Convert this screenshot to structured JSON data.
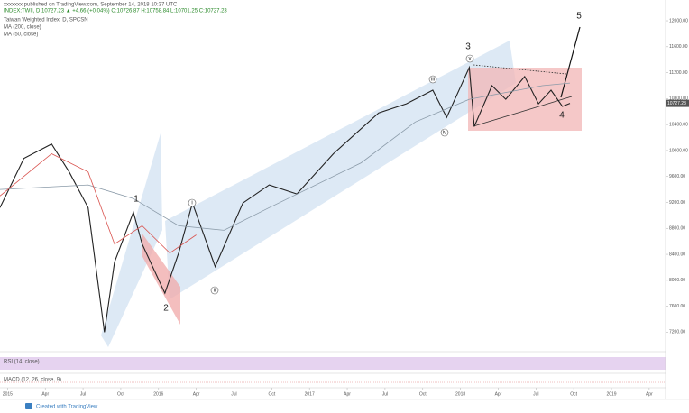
{
  "publisher": "xxxxxxx published on TradingView.com, September 14, 2018 10:37 UTC",
  "symbol_line": "INDEX:TWII, D 10727.23 ▲ +4.66 (+0.04%) O:10726.87 H:10758.84 L:10701.25 C:10727.23",
  "rsi_label": "RSI (14, close)",
  "macd_label": "MACD (12, 26, close, 9)",
  "footer": "Created with TradingView",
  "chart_data": {
    "type": "line",
    "xlim": [
      -0.6,
      52.3
    ],
    "xticks": [
      {
        "value": 0,
        "label": "2015"
      },
      {
        "value": 3,
        "label": "Apr"
      },
      {
        "value": 6,
        "label": "Jul"
      },
      {
        "value": 9,
        "label": "Oct"
      },
      {
        "value": 12,
        "label": "2016"
      },
      {
        "value": 15,
        "label": "Apr"
      },
      {
        "value": 18,
        "label": "Jul"
      },
      {
        "value": 21,
        "label": "Oct"
      },
      {
        "value": 24,
        "label": "2017"
      },
      {
        "value": 27,
        "label": "Apr"
      },
      {
        "value": 30,
        "label": "Jul"
      },
      {
        "value": 33,
        "label": "Oct"
      },
      {
        "value": 36,
        "label": "2018"
      },
      {
        "value": 39,
        "label": "Apr"
      },
      {
        "value": 42,
        "label": "Jul"
      },
      {
        "value": 45,
        "label": "Oct"
      },
      {
        "value": 48,
        "label": "2019"
      },
      {
        "value": 51,
        "label": "Apr"
      }
    ],
    "ylim": [
      6900,
      12320
    ],
    "yticks": [
      {
        "value": 7200,
        "label": "7200.00"
      },
      {
        "value": 7600,
        "label": "7600.00"
      },
      {
        "value": 8000,
        "label": "8000.00"
      },
      {
        "value": 8400,
        "label": "8400.00"
      },
      {
        "value": 8800,
        "label": "8800.00"
      },
      {
        "value": 9200,
        "label": "9200.00"
      },
      {
        "value": 9600,
        "label": "9600.00"
      },
      {
        "value": 10000,
        "label": "10000.00"
      },
      {
        "value": 10400,
        "label": "10400.00"
      },
      {
        "value": 10800,
        "label": "10800.00"
      },
      {
        "value": 11200,
        "label": "11200.00"
      },
      {
        "value": 11600,
        "label": "11600.00"
      },
      {
        "value": 12000,
        "label": "12000.00"
      }
    ],
    "series": [
      {
        "name": "Taiwan Weighted Index, D, SPCSN",
        "color": "#222222",
        "x": [
          -0.6,
          1.3,
          3.5,
          4.9,
          6.4,
          7.7,
          8.5,
          10.0,
          10.7,
          12.5,
          13.6,
          14.7,
          16.5,
          18.7,
          20.8,
          23.0,
          25.9,
          29.5,
          31.7,
          33.8,
          34.9,
          36.7,
          37.1,
          38.5,
          39.6,
          41.1,
          42.2,
          43.2,
          44.1,
          44.7
        ],
        "values": [
          9120,
          9880,
          10100,
          9670,
          9120,
          7200,
          8280,
          9050,
          8560,
          7800,
          8420,
          9190,
          8210,
          9190,
          9470,
          9330,
          9950,
          10580,
          10720,
          10930,
          10510,
          11280,
          10370,
          11000,
          10790,
          11140,
          10720,
          10930,
          10680,
          10727.23
        ]
      },
      {
        "name": "MA (200, close)",
        "color": "#8a9aa8",
        "x": [
          -0.6,
          6.4,
          10.0,
          13.6,
          17.2,
          20.8,
          28.1,
          32.4,
          36.7,
          42.5,
          44.7
        ],
        "values": [
          9400,
          9470,
          9260,
          8840,
          8770,
          9120,
          9810,
          10440,
          10790,
          11000,
          11040
        ]
      },
      {
        "name": "MA (50, close)",
        "color": "#d9534f",
        "x": [
          -0.6,
          3.5,
          6.4,
          8.5,
          10.7,
          12.9,
          15.0
        ],
        "values": [
          9300,
          9950,
          9670,
          8560,
          8840,
          8420,
          8700
        ]
      }
    ],
    "annotations": [
      "1",
      "2",
      "3",
      "4",
      "5",
      "i",
      "ii",
      "iii",
      "iv",
      "v"
    ]
  }
}
